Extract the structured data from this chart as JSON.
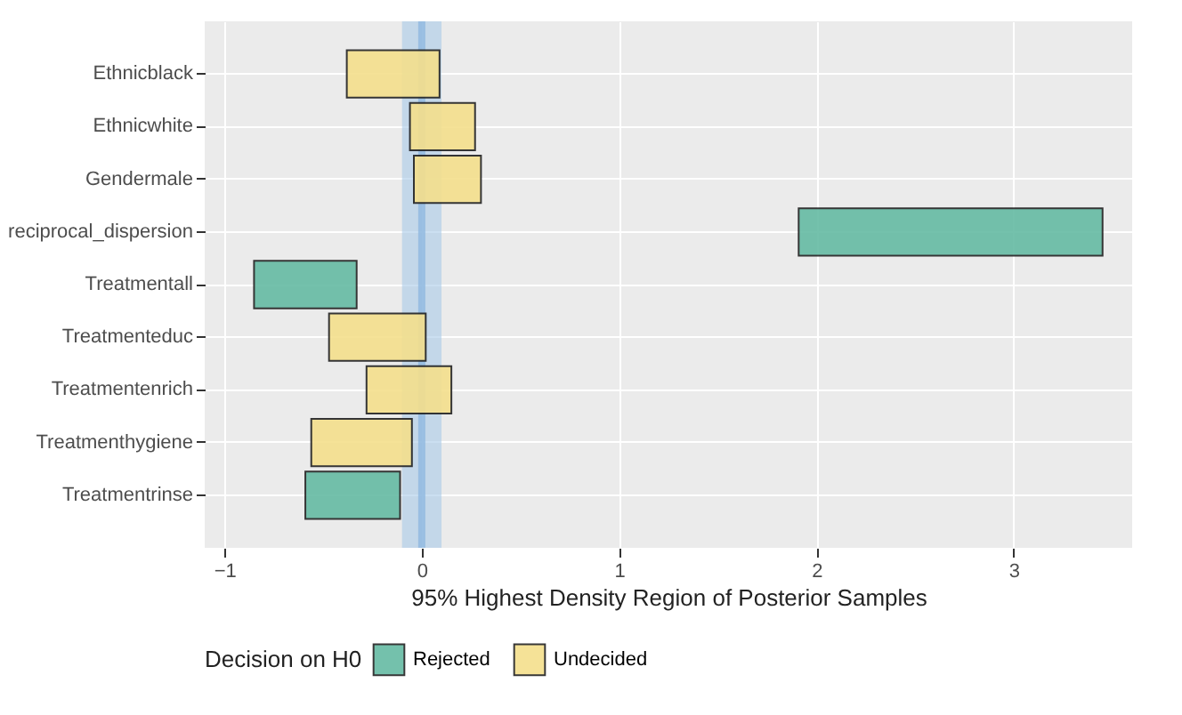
{
  "chart_data": {
    "type": "bar",
    "orientation": "horizontal",
    "xlabel": "95% Highest Density Region of Posterior Samples",
    "legend_title": "Decision on H0",
    "categories": [
      "Ethnicblack",
      "Ethnicwhite",
      "Gendermale",
      "reciprocal_dispersion",
      "Treatmentall",
      "Treatmenteduc",
      "Treatmentenrich",
      "Treatmenthygiene",
      "Treatmentrinse"
    ],
    "series": [
      {
        "name": "Rejected",
        "color": "#66bba4",
        "base": [
          null,
          null,
          null,
          1.91,
          -0.85,
          null,
          null,
          null,
          -0.59
        ],
        "values": [
          null,
          null,
          null,
          1.54,
          0.52,
          null,
          null,
          null,
          0.48
        ]
      },
      {
        "name": "Undecided",
        "color": "#f4df8c",
        "base": [
          -0.38,
          -0.06,
          -0.04,
          null,
          null,
          -0.47,
          -0.28,
          -0.56,
          null
        ],
        "values": [
          0.47,
          0.33,
          0.34,
          null,
          null,
          0.49,
          0.43,
          0.51,
          null
        ]
      }
    ],
    "xlim": [
      -1.1,
      3.6
    ],
    "xticks": [
      -1,
      0,
      1,
      2,
      3
    ],
    "grid": true,
    "legend": "bottom",
    "bands": [
      {
        "axis": "x",
        "from": -0.1,
        "to": 0.1,
        "color": "#a9c9e8"
      }
    ],
    "ref_lines": [
      {
        "axis": "x",
        "value": 0,
        "color": "#8fb8e0"
      }
    ]
  }
}
